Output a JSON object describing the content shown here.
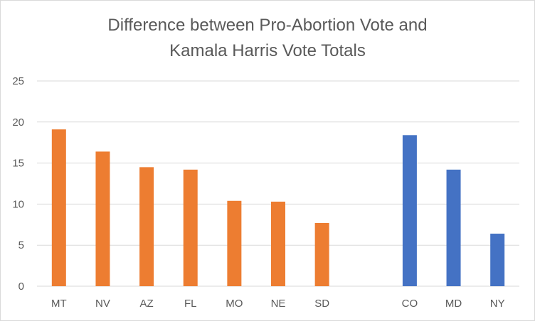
{
  "chart_data": {
    "type": "bar",
    "title_lines": [
      "Difference between Pro-Abortion Vote and",
      "Kamala Harris Vote Totals"
    ],
    "title": "Difference between Pro-Abortion Vote and Kamala Harris Vote Totals",
    "xlabel": "",
    "ylabel": "",
    "ylim": [
      0,
      25
    ],
    "yticks": [
      0,
      5,
      10,
      15,
      20,
      25
    ],
    "grid": true,
    "legend": "none",
    "categories": [
      "MT",
      "NV",
      "AZ",
      "FL",
      "MO",
      "NE",
      "SD",
      "",
      "CO",
      "MD",
      "NY"
    ],
    "series": [
      {
        "color": "#ED7D31",
        "values": [
          19.1,
          16.4,
          14.5,
          14.2,
          10.4,
          10.3,
          7.7,
          null,
          null,
          null,
          null
        ]
      },
      {
        "color": "#4472C4",
        "values": [
          null,
          null,
          null,
          null,
          null,
          null,
          null,
          null,
          18.4,
          14.2,
          6.4
        ]
      }
    ]
  }
}
